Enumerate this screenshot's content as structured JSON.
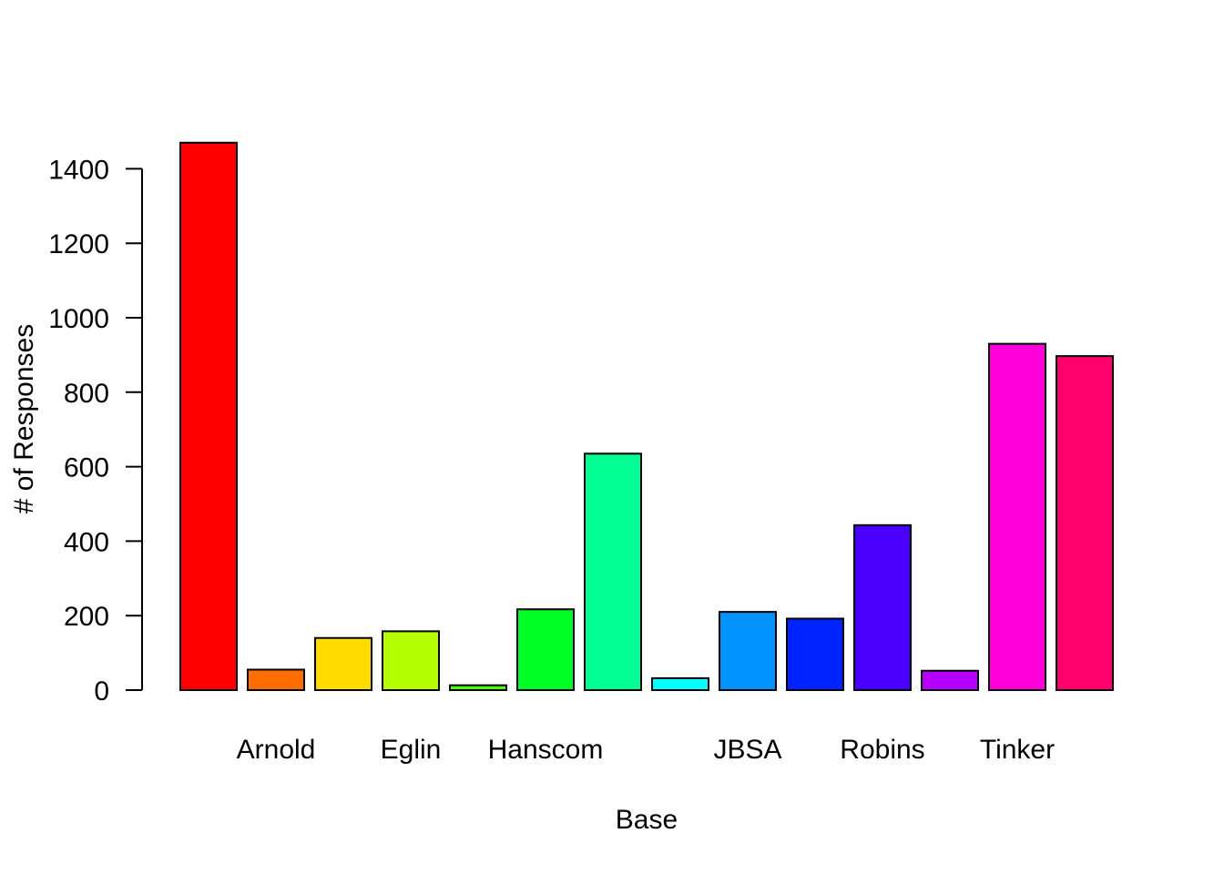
{
  "chart_data": {
    "type": "bar",
    "title": "",
    "xlabel": "Base",
    "ylabel": "# of Responses",
    "ylim": [
      0,
      1400
    ],
    "yticks": [
      0,
      200,
      400,
      600,
      800,
      1000,
      1200,
      1400
    ],
    "grid": false,
    "legend": "none",
    "categories": [
      "",
      "Arnold",
      "",
      "Eglin",
      "",
      "Hanscom",
      "",
      "",
      "JBSA",
      "",
      "Robins",
      "",
      "Tinker",
      ""
    ],
    "values": [
      1470,
      55,
      140,
      158,
      13,
      217,
      635,
      32,
      210,
      192,
      443,
      52,
      930,
      897
    ],
    "colors": [
      "#FF0000",
      "#FF6D00",
      "#FFDB00",
      "#B6FF00",
      "#49FF00",
      "#00FF24",
      "#00FF92",
      "#00FFFF",
      "#0092FF",
      "#0024FF",
      "#4900FF",
      "#B600FF",
      "#FF00DB",
      "#FF006D"
    ]
  }
}
